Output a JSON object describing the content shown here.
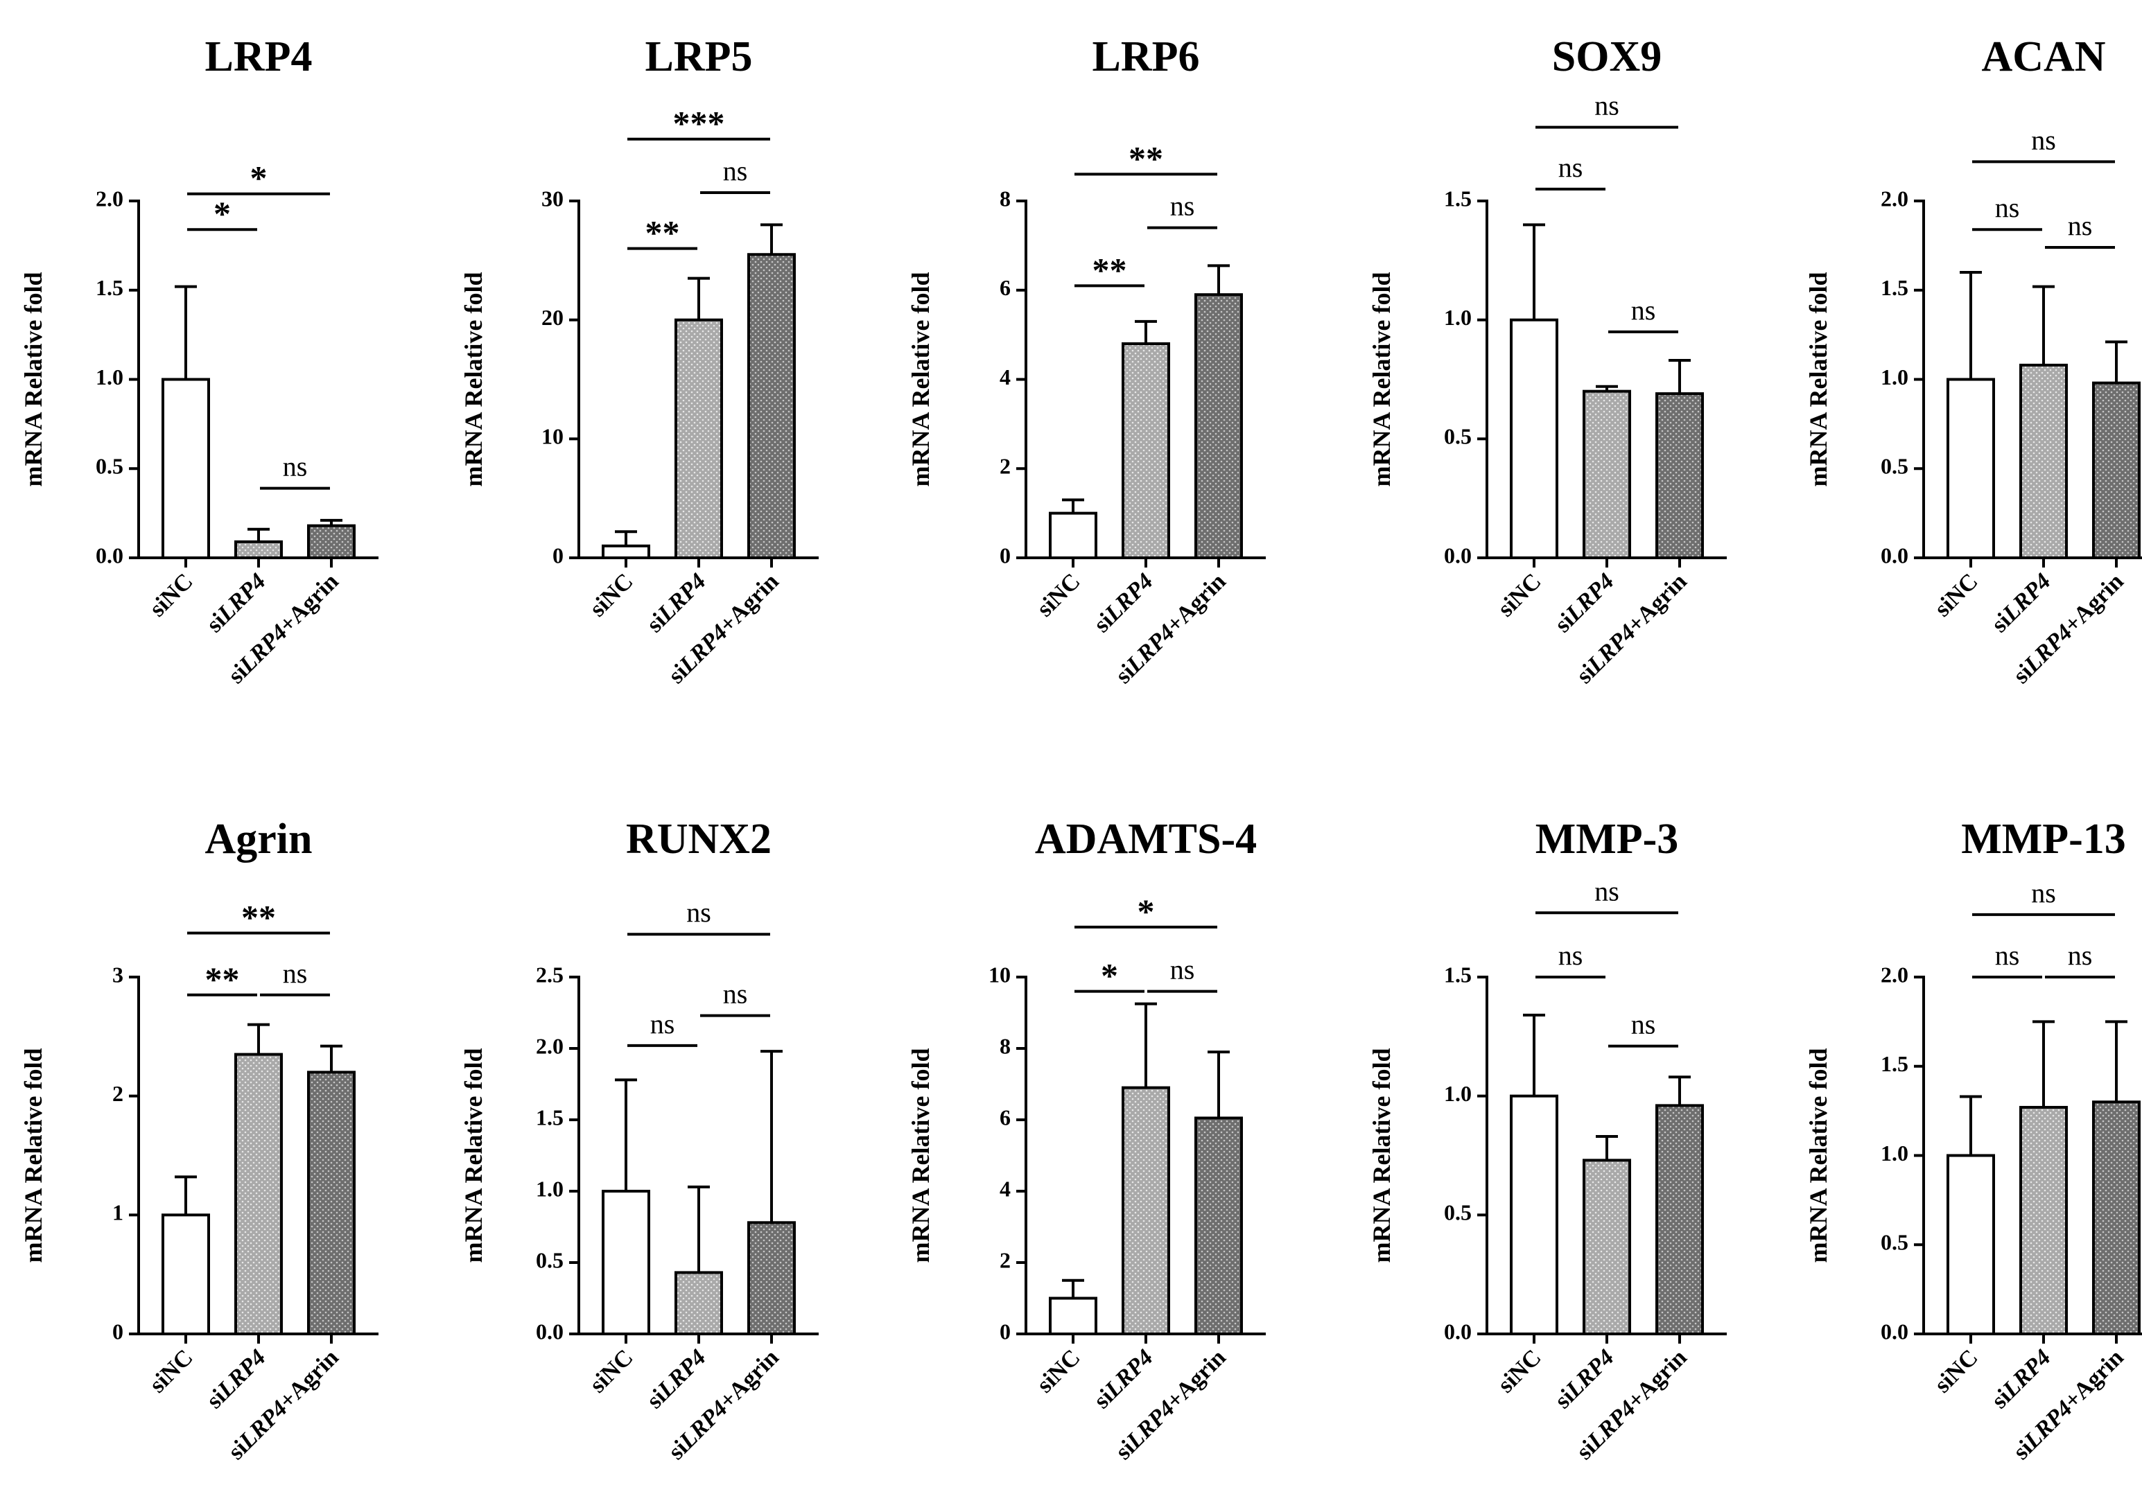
{
  "patterns": {
    "white": {
      "fill": "#ffffff",
      "dot": ""
    },
    "light": {
      "fill": "#a9a9a9",
      "dot": "#e8e8e8"
    },
    "dark": {
      "fill": "#6e6e6e",
      "dot": "#c8c8c8"
    }
  },
  "chart_data": [
    {
      "type": "bar",
      "title": "LRP4",
      "ylabel": "mRNA Relative fold",
      "categories": [
        "siNC",
        "siLRP4",
        "siLRP4+Agrin"
      ],
      "values": [
        1.0,
        0.09,
        0.18
      ],
      "errors": [
        0.52,
        0.07,
        0.03
      ],
      "ylim": [
        0,
        2.0
      ],
      "yticks": [
        "0.0",
        "0.5",
        "1.0",
        "1.5",
        "2.0"
      ],
      "bar_patterns": [
        "white",
        "light",
        "dark"
      ],
      "significance": [
        {
          "from": 0,
          "to": 1,
          "label": "*",
          "level": 1.84
        },
        {
          "from": 0,
          "to": 2,
          "label": "*",
          "level": 2.04
        },
        {
          "from": 1,
          "to": 2,
          "label": "ns",
          "level": 0.39
        }
      ]
    },
    {
      "type": "bar",
      "title": "LRP5",
      "ylabel": "mRNA Relative fold",
      "categories": [
        "siNC",
        "siLRP4",
        "siLRP4+Agrin"
      ],
      "values": [
        1.0,
        20.0,
        25.5
      ],
      "errors": [
        1.2,
        3.5,
        2.5
      ],
      "ylim": [
        0,
        30
      ],
      "yticks": [
        "0",
        "10",
        "20",
        "30"
      ],
      "bar_patterns": [
        "white",
        "light",
        "dark"
      ],
      "significance": [
        {
          "from": 0,
          "to": 1,
          "label": "**",
          "level": 26.0
        },
        {
          "from": 0,
          "to": 2,
          "label": "***",
          "level": 35.2
        },
        {
          "from": 1,
          "to": 2,
          "label": "ns",
          "level": 30.7
        }
      ]
    },
    {
      "type": "bar",
      "title": "LRP6",
      "ylabel": "mRNA Relative fold",
      "categories": [
        "siNC",
        "siLRP4",
        "siLRP4+Agrin"
      ],
      "values": [
        1.0,
        4.8,
        5.9
      ],
      "errors": [
        0.3,
        0.5,
        0.65
      ],
      "ylim": [
        0,
        8
      ],
      "yticks": [
        "0",
        "2",
        "4",
        "6",
        "8"
      ],
      "bar_patterns": [
        "white",
        "light",
        "dark"
      ],
      "significance": [
        {
          "from": 0,
          "to": 1,
          "label": "**",
          "level": 6.1
        },
        {
          "from": 0,
          "to": 2,
          "label": "**",
          "level": 8.6
        },
        {
          "from": 1,
          "to": 2,
          "label": "ns",
          "level": 7.4
        }
      ]
    },
    {
      "type": "bar",
      "title": "SOX9",
      "ylabel": "mRNA Relative fold",
      "categories": [
        "siNC",
        "siLRP4",
        "siLRP4+Agrin"
      ],
      "values": [
        1.0,
        0.7,
        0.69
      ],
      "errors": [
        0.4,
        0.02,
        0.14
      ],
      "ylim": [
        0,
        1.5
      ],
      "yticks": [
        "0.0",
        "0.5",
        "1.0",
        "1.5"
      ],
      "bar_patterns": [
        "white",
        "light",
        "dark"
      ],
      "significance": [
        {
          "from": 0,
          "to": 1,
          "label": "ns",
          "level": 1.55
        },
        {
          "from": 0,
          "to": 2,
          "label": "ns",
          "level": 1.81
        },
        {
          "from": 1,
          "to": 2,
          "label": "ns",
          "level": 0.95
        }
      ]
    },
    {
      "type": "bar",
      "title": "ACAN",
      "ylabel": "mRNA Relative fold",
      "categories": [
        "siNC",
        "siLRP4",
        "siLRP4+Agrin"
      ],
      "values": [
        1.0,
        1.08,
        0.98
      ],
      "errors": [
        0.6,
        0.44,
        0.23
      ],
      "ylim": [
        0,
        2.0
      ],
      "yticks": [
        "0.0",
        "0.5",
        "1.0",
        "1.5",
        "2.0"
      ],
      "bar_patterns": [
        "white",
        "light",
        "dark"
      ],
      "significance": [
        {
          "from": 0,
          "to": 1,
          "label": "ns",
          "level": 1.84
        },
        {
          "from": 0,
          "to": 2,
          "label": "ns",
          "level": 2.22
        },
        {
          "from": 1,
          "to": 2,
          "label": "ns",
          "level": 1.74
        }
      ]
    },
    {
      "type": "bar",
      "title": "Agrin",
      "ylabel": "mRNA Relative fold",
      "categories": [
        "siNC",
        "siLRP4",
        "siLRP4+Agrin"
      ],
      "values": [
        1.0,
        2.35,
        2.2
      ],
      "errors": [
        0.32,
        0.25,
        0.22
      ],
      "ylim": [
        0,
        3
      ],
      "yticks": [
        "0",
        "1",
        "2",
        "3"
      ],
      "bar_patterns": [
        "white",
        "light",
        "dark"
      ],
      "significance": [
        {
          "from": 0,
          "to": 1,
          "label": "**",
          "level": 2.85
        },
        {
          "from": 0,
          "to": 2,
          "label": "**",
          "level": 3.37
        },
        {
          "from": 1,
          "to": 2,
          "label": "ns",
          "level": 2.85
        }
      ]
    },
    {
      "type": "bar",
      "title": "RUNX2",
      "ylabel": "mRNA Relative fold",
      "categories": [
        "siNC",
        "siLRP4",
        "siLRP4+Agrin"
      ],
      "values": [
        1.0,
        0.43,
        0.78
      ],
      "errors": [
        0.78,
        0.6,
        1.2
      ],
      "ylim": [
        0,
        2.5
      ],
      "yticks": [
        "0.0",
        "0.5",
        "1.0",
        "1.5",
        "2.0",
        "2.5"
      ],
      "bar_patterns": [
        "white",
        "light",
        "dark"
      ],
      "significance": [
        {
          "from": 0,
          "to": 1,
          "label": "ns",
          "level": 2.02
        },
        {
          "from": 0,
          "to": 2,
          "label": "ns",
          "level": 2.8
        },
        {
          "from": 1,
          "to": 2,
          "label": "ns",
          "level": 2.23
        }
      ]
    },
    {
      "type": "bar",
      "title": "ADAMTS-4",
      "ylabel": "mRNA Relative fold",
      "categories": [
        "siNC",
        "siLRP4",
        "siLRP4+Agrin"
      ],
      "values": [
        1.0,
        6.9,
        6.05
      ],
      "errors": [
        0.5,
        2.35,
        1.85
      ],
      "ylim": [
        0,
        10
      ],
      "yticks": [
        "0",
        "2",
        "4",
        "6",
        "8",
        "10"
      ],
      "bar_patterns": [
        "white",
        "light",
        "dark"
      ],
      "significance": [
        {
          "from": 0,
          "to": 1,
          "label": "*",
          "level": 9.6
        },
        {
          "from": 0,
          "to": 2,
          "label": "*",
          "level": 11.4
        },
        {
          "from": 1,
          "to": 2,
          "label": "ns",
          "level": 9.6
        }
      ]
    },
    {
      "type": "bar",
      "title": "MMP-3",
      "ylabel": "mRNA Relative fold",
      "categories": [
        "siNC",
        "siLRP4",
        "siLRP4+Agrin"
      ],
      "values": [
        1.0,
        0.73,
        0.96
      ],
      "errors": [
        0.34,
        0.1,
        0.12
      ],
      "ylim": [
        0,
        1.5
      ],
      "yticks": [
        "0.0",
        "0.5",
        "1.0",
        "1.5"
      ],
      "bar_patterns": [
        "white",
        "light",
        "dark"
      ],
      "significance": [
        {
          "from": 0,
          "to": 1,
          "label": "ns",
          "level": 1.5
        },
        {
          "from": 0,
          "to": 2,
          "label": "ns",
          "level": 1.77
        },
        {
          "from": 1,
          "to": 2,
          "label": "ns",
          "level": 1.21
        }
      ]
    },
    {
      "type": "bar",
      "title": "MMP-13",
      "ylabel": "mRNA Relative fold",
      "categories": [
        "siNC",
        "siLRP4",
        "siLRP4+Agrin"
      ],
      "values": [
        1.0,
        1.27,
        1.3
      ],
      "errors": [
        0.33,
        0.48,
        0.45
      ],
      "ylim": [
        0,
        2.0
      ],
      "yticks": [
        "0.0",
        "0.5",
        "1.0",
        "1.5",
        "2.0"
      ],
      "bar_patterns": [
        "white",
        "light",
        "dark"
      ],
      "significance": [
        {
          "from": 0,
          "to": 1,
          "label": "ns",
          "level": 2.0
        },
        {
          "from": 0,
          "to": 2,
          "label": "ns",
          "level": 2.35
        },
        {
          "from": 1,
          "to": 2,
          "label": "ns",
          "level": 2.0
        }
      ]
    }
  ]
}
